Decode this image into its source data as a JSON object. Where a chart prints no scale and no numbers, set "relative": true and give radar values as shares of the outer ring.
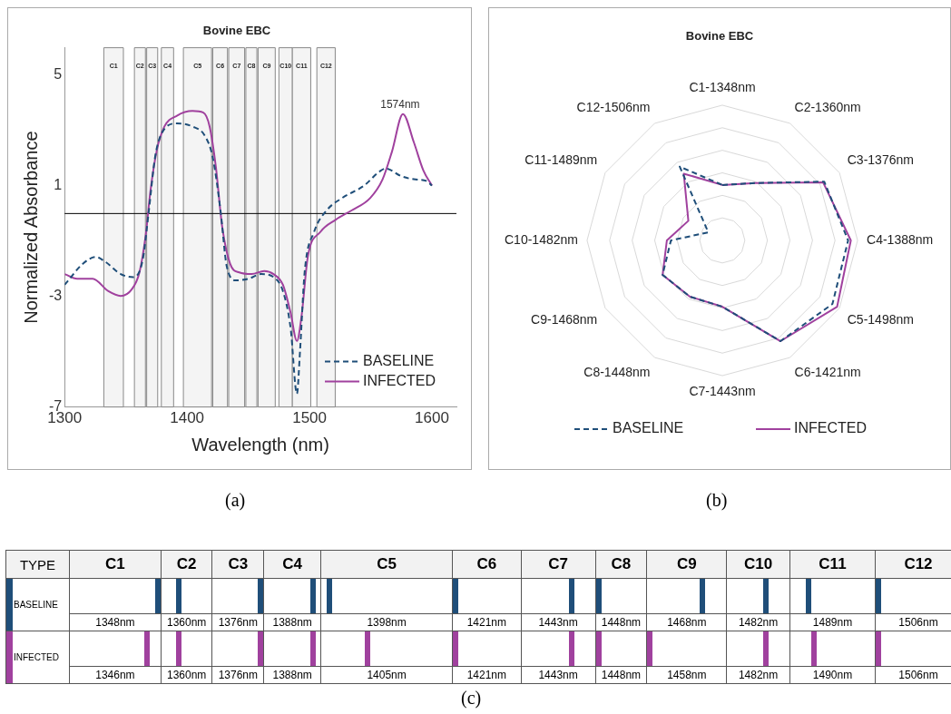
{
  "chart_data": [
    {
      "type": "line",
      "title": "Bovine EBC",
      "xlabel": "Wavelength (nm)",
      "ylabel": "Normalized Absorbance",
      "xlim": [
        1300,
        1620
      ],
      "xticks": [
        1300,
        1400,
        1500,
        1600
      ],
      "ylim": [
        -7,
        6
      ],
      "yticks": [
        -7,
        -3,
        1,
        5
      ],
      "grid": false,
      "legend": "bottom right",
      "marker": "none",
      "annotations": [
        {
          "text": "1574nm",
          "x": 1574,
          "y": 3.6
        },
        "(a)"
      ],
      "ref_lines": [
        {
          "axis": "y",
          "value": 0,
          "color": "#000000"
        }
      ],
      "bands": [
        {
          "axis": "x",
          "from": 1332,
          "to": 1348,
          "label": "C1",
          "color": "#f4f4f4"
        },
        {
          "axis": "x",
          "from": 1357,
          "to": 1366,
          "label": "C2",
          "color": "#f4f4f4"
        },
        {
          "axis": "x",
          "from": 1367,
          "to": 1376,
          "label": "C3",
          "color": "#f4f4f4"
        },
        {
          "axis": "x",
          "from": 1379,
          "to": 1389,
          "label": "C4",
          "color": "#f4f4f4"
        },
        {
          "axis": "x",
          "from": 1397,
          "to": 1420,
          "label": "C5",
          "color": "#f4f4f4"
        },
        {
          "axis": "x",
          "from": 1421,
          "to": 1433,
          "label": "C6",
          "color": "#f4f4f4"
        },
        {
          "axis": "x",
          "from": 1434,
          "to": 1447,
          "label": "C7",
          "color": "#f4f4f4"
        },
        {
          "axis": "x",
          "from": 1448,
          "to": 1457,
          "label": "C8",
          "color": "#f4f4f4"
        },
        {
          "axis": "x",
          "from": 1458,
          "to": 1472,
          "label": "C9",
          "color": "#f4f4f4"
        },
        {
          "axis": "x",
          "from": 1475,
          "to": 1486,
          "label": "C10",
          "color": "#f4f4f4"
        },
        {
          "axis": "x",
          "from": 1486,
          "to": 1501,
          "label": "C11",
          "color": "#f4f4f4"
        },
        {
          "axis": "x",
          "from": 1506,
          "to": 1521,
          "label": "C12",
          "color": "#f4f4f4"
        }
      ],
      "series": [
        {
          "name": "BASELINE",
          "color": "#1f4e79",
          "line_style": "dashed",
          "x": [
            1300,
            1315.3,
            1325.5,
            1333,
            1345.8,
            1356,
            1363.7,
            1368.8,
            1373.8,
            1378.9,
            1391.7,
            1404.4,
            1414.6,
            1421,
            1427.3,
            1432.4,
            1440,
            1450.2,
            1460.4,
            1470.6,
            1478.3,
            1484.6,
            1489.7,
            1492.3,
            1496,
            1503.7,
            1513.9,
            1526.6,
            1544.5,
            1557.2,
            1562.3,
            1575,
            1585.2,
            1595.4,
            1600
          ],
          "values": [
            -2.58,
            -1.8,
            -1.57,
            -1.74,
            -2.19,
            -2.3,
            -1.69,
            0.11,
            2.02,
            2.87,
            3.26,
            3.15,
            2.81,
            2.02,
            0.11,
            -1.91,
            -2.42,
            -2.36,
            -2.19,
            -2.3,
            -2.81,
            -4.16,
            -6.52,
            -4.94,
            -2.13,
            -0.67,
            0.11,
            0.56,
            1.01,
            1.52,
            1.63,
            1.35,
            1.24,
            1.18,
            1.01
          ]
        },
        {
          "name": "INFECTED",
          "color": "#a0419e",
          "line_style": "solid",
          "x": [
            1300,
            1310.2,
            1322.9,
            1335.7,
            1345.8,
            1354.7,
            1361.1,
            1366.2,
            1370,
            1375.1,
            1381.5,
            1391.7,
            1404.4,
            1413.3,
            1418.4,
            1423.5,
            1428.6,
            1435,
            1442.6,
            1452.8,
            1463,
            1470.6,
            1478.3,
            1484.6,
            1489.7,
            1493.5,
            1498.6,
            1508.8,
            1521.5,
            1534.3,
            1549.5,
            1559.7,
            1567.4,
            1576.3,
            1585.2,
            1592.9,
            1600
          ],
          "values": [
            -2.19,
            -2.36,
            -2.36,
            -2.81,
            -2.98,
            -2.75,
            -2.13,
            -0.79,
            0.79,
            2.25,
            3.15,
            3.54,
            3.71,
            3.65,
            3.15,
            1.69,
            -0.45,
            -1.8,
            -2.13,
            -2.19,
            -2.08,
            -2.19,
            -2.58,
            -3.6,
            -4.61,
            -3.71,
            -1.57,
            -0.67,
            -0.22,
            0.11,
            0.56,
            1.24,
            2.25,
            3.6,
            2.58,
            1.57,
            1.01
          ]
        }
      ]
    },
    {
      "type": "radar",
      "title": "Bovine EBC",
      "relative": true,
      "legend": "bottom",
      "marker": "none",
      "annotations": [
        "(b)"
      ],
      "categories": [
        "C1-1348nm",
        "C2-1360nm",
        "C3-1376nm",
        "C4-1388nm",
        "C5-1498nm",
        "C6-1421nm",
        "C7-1443nm",
        "C8-1448nm",
        "C9-1468nm",
        "C10-1482nm",
        "C11-1489nm",
        "C12-1506nm"
      ],
      "series": [
        {
          "name": "BASELINE",
          "color": "#1f4e79",
          "line_style": "dashed",
          "values": [
            0.41,
            0.49,
            0.87,
            0.93,
            0.94,
            0.86,
            0.49,
            0.48,
            0.51,
            0.38,
            0.12,
            0.63
          ]
        },
        {
          "name": "INFECTED",
          "color": "#a0419e",
          "line_style": "solid",
          "values": [
            0.41,
            0.49,
            0.86,
            0.95,
            0.98,
            0.86,
            0.49,
            0.48,
            0.51,
            0.41,
            0.29,
            0.57
          ]
        }
      ]
    },
    {
      "type": "other",
      "annotations": [
        "TYPE",
        "(c)"
      ],
      "categories": [
        "C1",
        "C2",
        "C3",
        "C4",
        "C5",
        "C6",
        "C7",
        "C8",
        "C9",
        "C10",
        "C11",
        "C12"
      ],
      "series": [
        {
          "name": "BASELINE",
          "values": [
            1348,
            1360,
            1376,
            1388,
            1398,
            1421,
            1443,
            1448,
            1468,
            1482,
            1489,
            1506
          ],
          "value_labels": [
            "1348nm",
            "1360nm",
            "1376nm",
            "1388nm",
            "1398nm",
            "1421nm",
            "1443nm",
            "1448nm",
            "1468nm",
            "1482nm",
            "1489nm",
            "1506nm"
          ]
        },
        {
          "name": "INFECTED",
          "values": [
            1346,
            1360,
            1376,
            1388,
            1405,
            1421,
            1443,
            1448,
            1458,
            1482,
            1490,
            1506
          ],
          "value_labels": [
            "1346nm",
            "1360nm",
            "1376nm",
            "1388nm",
            "1405nm",
            "1421nm",
            "1443nm",
            "1448nm",
            "1458nm",
            "1482nm",
            "1490nm",
            "1506nm"
          ]
        }
      ]
    }
  ]
}
